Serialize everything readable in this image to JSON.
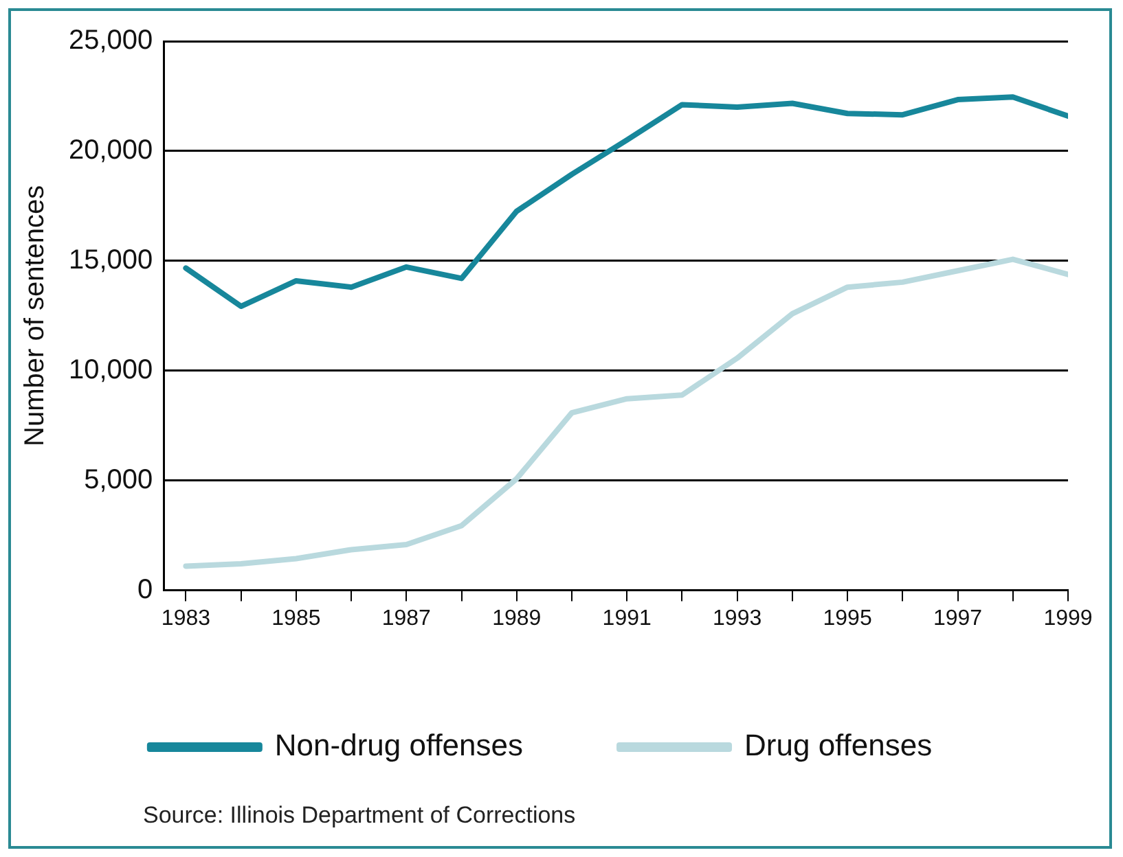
{
  "chart_data": {
    "type": "line",
    "ylabel": "Number of sentences",
    "xlim": [
      1982.6,
      1999
    ],
    "x": [
      1983,
      1984,
      1985,
      1986,
      1987,
      1988,
      1989,
      1990,
      1991,
      1992,
      1993,
      1994,
      1995,
      1996,
      1997,
      1998,
      1999
    ],
    "xticks": [
      1983,
      {
        "value": 1984,
        "label": null
      },
      1985,
      {
        "value": 1986,
        "label": null
      },
      1987,
      {
        "value": 1988,
        "label": null
      },
      1989,
      {
        "value": 1990,
        "label": null
      },
      1991,
      {
        "value": 1992,
        "label": null
      },
      1993,
      {
        "value": 1994,
        "label": null
      },
      1995,
      {
        "value": 1996,
        "label": null
      },
      1997,
      {
        "value": 1998,
        "label": null
      },
      1999
    ],
    "ylim": [
      0,
      25000
    ],
    "yticks": [
      {
        "value": 0,
        "label": "0"
      },
      {
        "value": 5000,
        "label": "5,000"
      },
      {
        "value": 10000,
        "label": "10,000"
      },
      {
        "value": 15000,
        "label": "15,000"
      },
      {
        "value": 20000,
        "label": "20,000"
      },
      {
        "value": 25000,
        "label": "25,000"
      }
    ],
    "series": [
      {
        "name": "Non-drug offenses",
        "color": "#17879b",
        "values": [
          14670,
          12930,
          14090,
          13800,
          14720,
          14200,
          17260,
          18940,
          20500,
          22110,
          22000,
          22170,
          21710,
          21650,
          22340,
          22460,
          21590
        ]
      },
      {
        "name": "Drug offenses",
        "color": "#b9d9de",
        "values": [
          1100,
          1210,
          1440,
          1850,
          2080,
          2940,
          5080,
          8080,
          8720,
          8890,
          10570,
          12590,
          13800,
          14030,
          14550,
          15070,
          14380
        ]
      }
    ],
    "grid": "y",
    "legend": "bottom",
    "marker": "none",
    "line_style": "solid",
    "annotations": [
      "Source: Illinois Department of Corrections"
    ]
  }
}
